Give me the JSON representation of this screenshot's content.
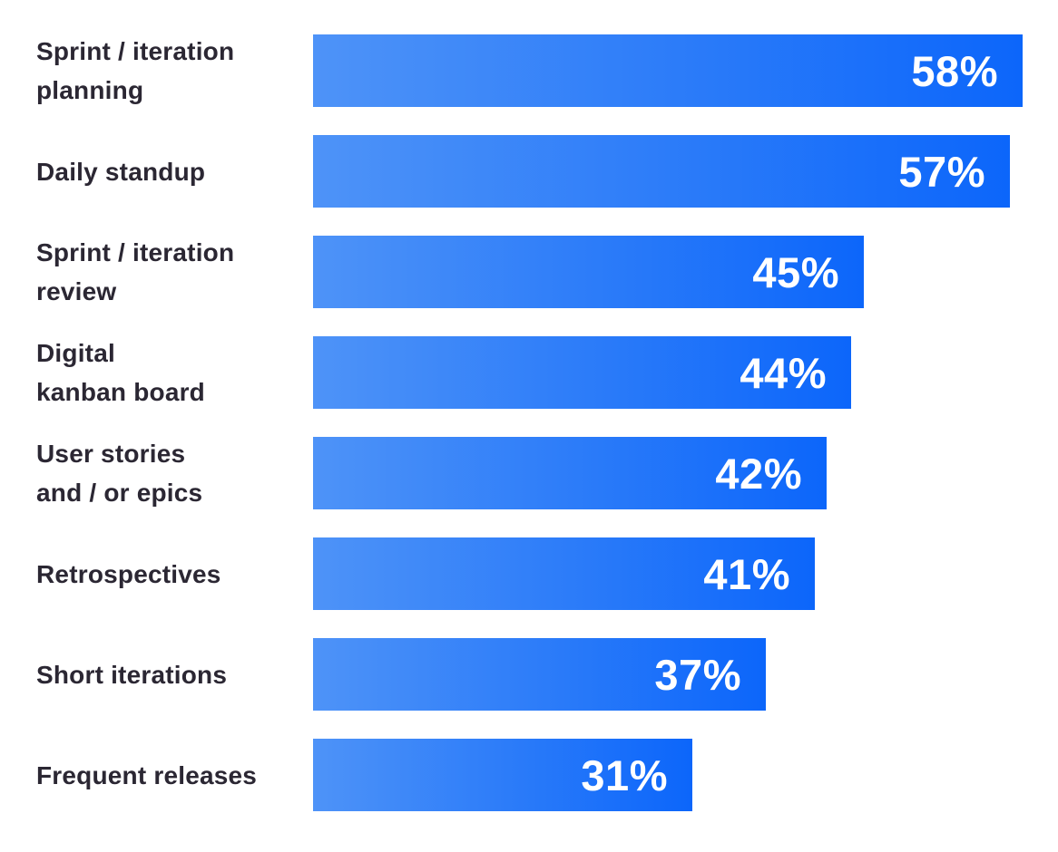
{
  "chart_data": {
    "type": "bar",
    "orientation": "horizontal",
    "title": "",
    "xlabel": "",
    "ylabel": "",
    "value_suffix": "%",
    "xlim": [
      0,
      58
    ],
    "grid": false,
    "legend": false,
    "categories": [
      "Sprint / iteration\nplanning",
      "Daily standup",
      "Sprint / iteration\nreview",
      "Digital\nkanban board",
      "User stories\nand / or epics",
      "Retrospectives",
      "Short iterations",
      "Frequent releases"
    ],
    "values": [
      58,
      57,
      45,
      44,
      42,
      41,
      37,
      31
    ],
    "value_labels": [
      "58%",
      "57%",
      "45%",
      "44%",
      "42%",
      "41%",
      "37%",
      "31%"
    ],
    "colors": {
      "bar_gradient_start": "#4E93F8",
      "bar_gradient_end": "#0C66FA",
      "value_text": "#ffffff",
      "category_text": "#2b2733",
      "background": "#ffffff"
    }
  }
}
